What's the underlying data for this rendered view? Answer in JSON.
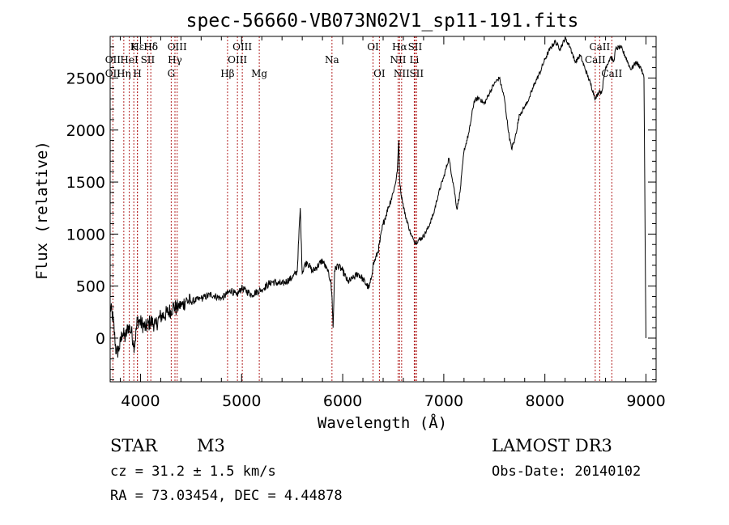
{
  "chart_data": {
    "type": "line",
    "title": "spec-56660-VB073N02V1_sp11-191.fits",
    "xlabel": "Wavelength (Å)",
    "ylabel": "Flux (relative)",
    "xlim": [
      3700,
      9100
    ],
    "ylim": [
      -420,
      2900
    ],
    "x_ticks": [
      4000,
      5000,
      6000,
      7000,
      8000,
      9000
    ],
    "x_tick_labels": [
      "4000",
      "5000",
      "6000",
      "7000",
      "8000",
      "9000"
    ],
    "y_ticks": [
      0,
      500,
      1000,
      1500,
      2000,
      2500
    ],
    "y_tick_labels": [
      "0",
      "500",
      "1000",
      "1500",
      "2000",
      "2500"
    ],
    "series": [
      {
        "name": "flux",
        "color": "#000000",
        "x": [
          3700,
          3730,
          3760,
          3790,
          3820,
          3850,
          3880,
          3910,
          3940,
          3970,
          4000,
          4050,
          4100,
          4150,
          4200,
          4250,
          4300,
          4330,
          4360,
          4380,
          4400,
          4450,
          4500,
          4600,
          4700,
          4800,
          4850,
          4900,
          4950,
          5000,
          5100,
          5200,
          5300,
          5400,
          5500,
          5550,
          5580,
          5600,
          5620,
          5650,
          5700,
          5750,
          5800,
          5850,
          5880,
          5895,
          5905,
          5920,
          5950,
          6000,
          6050,
          6100,
          6150,
          6200,
          6230,
          6260,
          6280,
          6300,
          6350,
          6400,
          6450,
          6500,
          6520,
          6540,
          6555,
          6563,
          6575,
          6590,
          6620,
          6650,
          6680,
          6700,
          6720,
          6750,
          6800,
          6850,
          6900,
          6950,
          7000,
          7050,
          7100,
          7130,
          7160,
          7200,
          7250,
          7300,
          7350,
          7400,
          7450,
          7500,
          7550,
          7600,
          7640,
          7670,
          7700,
          7750,
          7800,
          7850,
          7900,
          7950,
          8000,
          8050,
          8100,
          8150,
          8200,
          8250,
          8300,
          8350,
          8400,
          8450,
          8500,
          8540,
          8560,
          8600,
          8650,
          8680,
          8700,
          8750,
          8800,
          8850,
          8900,
          8950,
          8980,
          8995,
          9000
        ],
        "values": [
          300,
          180,
          -150,
          -100,
          50,
          0,
          120,
          60,
          -80,
          180,
          150,
          100,
          160,
          130,
          210,
          230,
          270,
          310,
          280,
          330,
          300,
          360,
          350,
          380,
          420,
          380,
          420,
          460,
          410,
          480,
          420,
          470,
          540,
          520,
          580,
          640,
          1250,
          620,
          700,
          730,
          640,
          690,
          750,
          640,
          560,
          380,
          100,
          650,
          700,
          650,
          540,
          570,
          620,
          570,
          520,
          480,
          560,
          700,
          830,
          1100,
          1250,
          1400,
          1480,
          1600,
          1900,
          1530,
          1400,
          1320,
          1180,
          1080,
          980,
          950,
          920,
          940,
          980,
          1070,
          1200,
          1400,
          1550,
          1730,
          1450,
          1240,
          1400,
          1800,
          1980,
          2280,
          2310,
          2250,
          2350,
          2450,
          2500,
          2300,
          1980,
          1820,
          1900,
          2150,
          2220,
          2320,
          2450,
          2550,
          2680,
          2780,
          2850,
          2780,
          2880,
          2800,
          2650,
          2720,
          2580,
          2450,
          2300,
          2380,
          2350,
          2600,
          2700,
          2660,
          2780,
          2800,
          2700,
          2580,
          2650,
          2600,
          2500,
          500,
          0
        ]
      }
    ],
    "line_markers": [
      {
        "label": "Hδ",
        "x": 4102,
        "row": 0
      },
      {
        "label": "Hε",
        "x": 3970,
        "row": 0
      },
      {
        "label": "K",
        "x": 3934,
        "row": 0
      },
      {
        "label": "OII",
        "x": 3727,
        "row": 1
      },
      {
        "label": "HeI",
        "x": 3889,
        "row": 1
      },
      {
        "label": "SII",
        "x": 4072,
        "row": 1
      },
      {
        "label": "OII",
        "x": 3727,
        "row": 2
      },
      {
        "label": "Hη",
        "x": 3835,
        "row": 2
      },
      {
        "label": "H",
        "x": 3969,
        "row": 2
      },
      {
        "label": "Hδ",
        "x": 4102,
        "row": 0
      },
      {
        "label": "OIII",
        "x": 4363,
        "row": 0
      },
      {
        "label": "Hγ",
        "x": 4341,
        "row": 1
      },
      {
        "label": "G",
        "x": 4304,
        "row": 2
      },
      {
        "label": "Hβ",
        "x": 4861,
        "row": 2
      },
      {
        "label": "OIII",
        "x": 5007,
        "row": 0
      },
      {
        "label": "OIII",
        "x": 4959,
        "row": 1
      },
      {
        "label": "Mg",
        "x": 5175,
        "row": 2
      },
      {
        "label": "Na",
        "x": 5894,
        "row": 1
      },
      {
        "label": "OI",
        "x": 6300,
        "row": 0
      },
      {
        "label": "OI",
        "x": 6363,
        "row": 2
      },
      {
        "label": "Hα",
        "x": 6563,
        "row": 0
      },
      {
        "label": "SII",
        "x": 6716,
        "row": 0
      },
      {
        "label": "NII",
        "x": 6548,
        "row": 1
      },
      {
        "label": "Li",
        "x": 6708,
        "row": 1
      },
      {
        "label": "NII",
        "x": 6583,
        "row": 2
      },
      {
        "label": "SII",
        "x": 6731,
        "row": 2
      },
      {
        "label": "CaII",
        "x": 8542,
        "row": 0
      },
      {
        "label": "CaII",
        "x": 8498,
        "row": 1
      },
      {
        "label": "CaII",
        "x": 8662,
        "row": 2
      }
    ]
  },
  "info": {
    "object_class": "STAR",
    "subclass": "M3",
    "survey": "LAMOST DR3",
    "redshift": "cz = 31.2 ± 1.5 km/s",
    "obs_date": "Obs-Date: 20140102",
    "coords": "RA =  73.03454, DEC =   4.44878"
  }
}
